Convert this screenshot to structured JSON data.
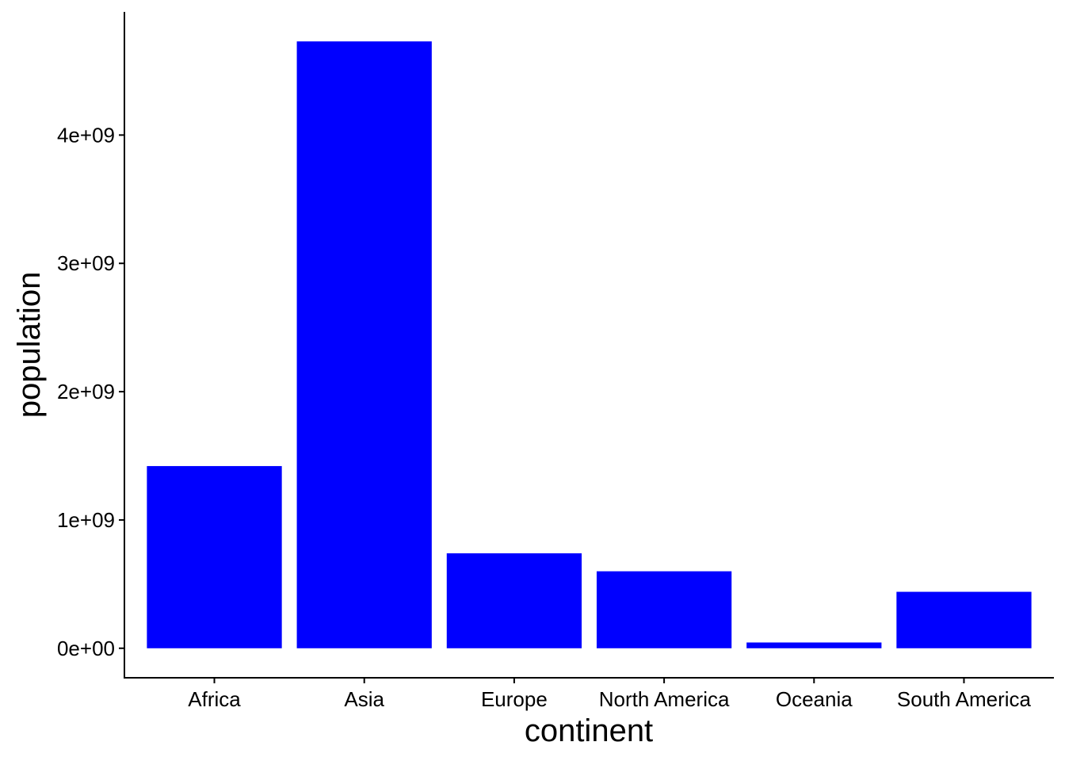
{
  "chart_data": {
    "type": "bar",
    "categories": [
      "Africa",
      "Asia",
      "Europe",
      "North America",
      "Oceania",
      "South America"
    ],
    "values": [
      1420000000,
      4730000000,
      740000000,
      600000000,
      45000000,
      440000000
    ],
    "title": "",
    "xlabel": "continent",
    "ylabel": "population",
    "yticks": [
      0,
      1000000000,
      2000000000,
      3000000000,
      4000000000
    ],
    "ytick_labels": [
      "0e+00",
      "1e+09",
      "2e+09",
      "3e+09",
      "4e+09"
    ],
    "ylim": [
      -230000000,
      4960000000
    ],
    "bar_color": "#0000ff",
    "grid": false,
    "legend": "none"
  }
}
